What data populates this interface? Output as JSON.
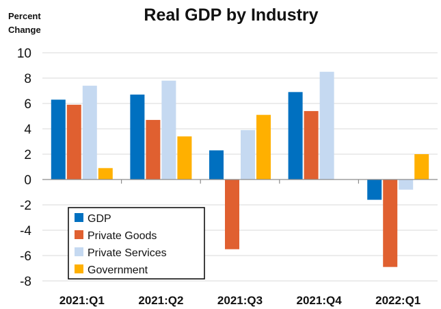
{
  "chart_data": {
    "type": "bar",
    "title": "Real GDP by Industry",
    "ylabel_lines": [
      "Percent",
      "Change"
    ],
    "xlabel": "",
    "categories": [
      "2021:Q1",
      "2021:Q2",
      "2021:Q3",
      "2021:Q4",
      "2022:Q1"
    ],
    "series": [
      {
        "name": "GDP",
        "color": "#0070c0",
        "values": [
          6.3,
          6.7,
          2.3,
          6.9,
          -1.6
        ]
      },
      {
        "name": "Private Goods",
        "color": "#e06030",
        "values": [
          5.9,
          4.7,
          -5.5,
          5.4,
          -6.9
        ]
      },
      {
        "name": "Private Services",
        "color": "#c5d9f1",
        "values": [
          7.4,
          7.8,
          3.9,
          8.5,
          -0.8
        ]
      },
      {
        "name": "Government",
        "color": "#ffb000",
        "values": [
          0.9,
          3.4,
          5.1,
          null,
          2.0
        ]
      }
    ],
    "ylim": [
      -8,
      10
    ],
    "yticks": [
      10,
      8,
      6,
      4,
      2,
      0,
      -2,
      -4,
      -6,
      -8
    ],
    "grid": true,
    "legend_position": "bottom-left"
  }
}
